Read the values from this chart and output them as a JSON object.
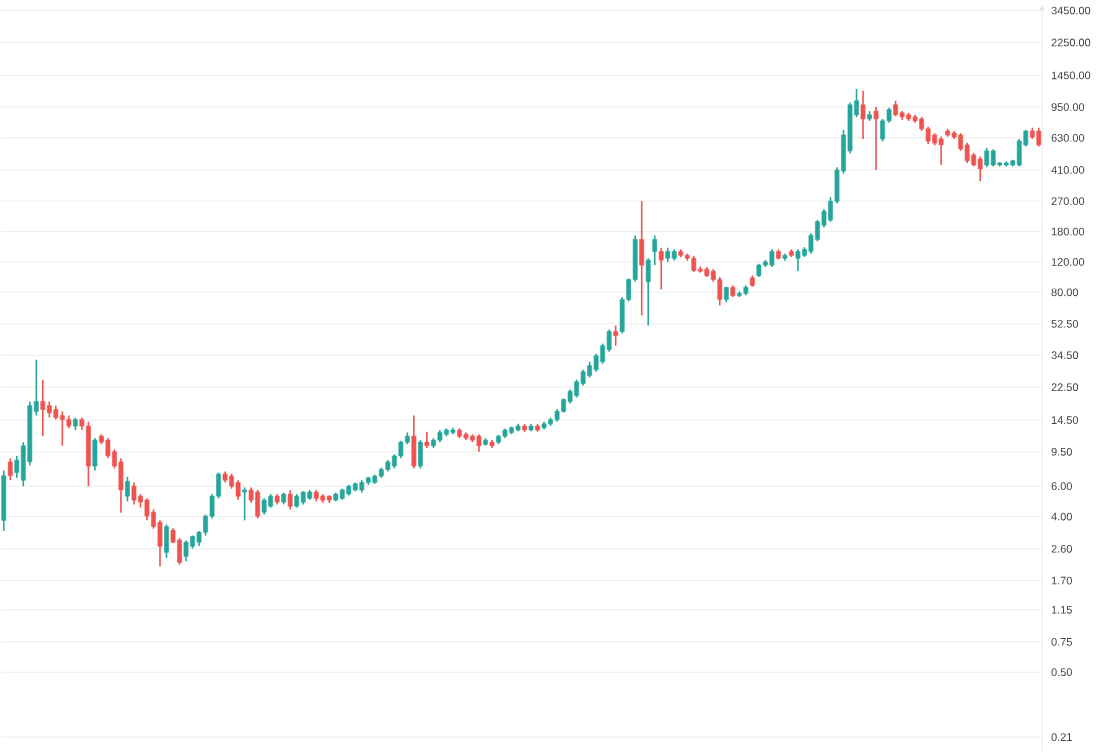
{
  "chart_data": {
    "type": "candlestick",
    "log": "y",
    "grid": "y",
    "tick_labels": "y",
    "ylim": [
      0.17,
      3700
    ],
    "yticks": [
      {
        "value": 0.21,
        "label": "0.21"
      },
      {
        "value": 0.5,
        "label": "0.50"
      },
      {
        "value": 0.75,
        "label": "0.75"
      },
      {
        "value": 1.15,
        "label": "1.15"
      },
      {
        "value": 1.7,
        "label": "1.70"
      },
      {
        "value": 2.6,
        "label": "2.60"
      },
      {
        "value": 4,
        "label": "4.00"
      },
      {
        "value": 6,
        "label": "6.00"
      },
      {
        "value": 9.5,
        "label": "9.50"
      },
      {
        "value": 14.5,
        "label": "14.50"
      },
      {
        "value": 22.5,
        "label": "22.50"
      },
      {
        "value": 34.5,
        "label": "34.50"
      },
      {
        "value": 52.5,
        "label": "52.50"
      },
      {
        "value": 80,
        "label": "80.00"
      },
      {
        "value": 120,
        "label": "120.00"
      },
      {
        "value": 180,
        "label": "180.00"
      },
      {
        "value": 270,
        "label": "270.00"
      },
      {
        "value": 410,
        "label": "410.00"
      },
      {
        "value": 630,
        "label": "630.00"
      },
      {
        "value": 950,
        "label": "950.00"
      },
      {
        "value": 1450,
        "label": "1450.00"
      },
      {
        "value": 2250,
        "label": "2250.00"
      },
      {
        "value": 3450,
        "label": "3450.00"
      }
    ],
    "categories": [
      null,
      null,
      null,
      null,
      null,
      null,
      null,
      null,
      null,
      null,
      null,
      null,
      null,
      null,
      null,
      null,
      null,
      null,
      null,
      null,
      null,
      null,
      null,
      null,
      null,
      null,
      null,
      null,
      null,
      null,
      null,
      null,
      null,
      null,
      null,
      null,
      null,
      null,
      null,
      null,
      null,
      null,
      null,
      null,
      null,
      null,
      null,
      null,
      null,
      null,
      null,
      null,
      null,
      null,
      null,
      null,
      null,
      null,
      null,
      null,
      null,
      null,
      null,
      null,
      null,
      null,
      null,
      null,
      null,
      null,
      null,
      null,
      null,
      null,
      null,
      null,
      null,
      null,
      null,
      null,
      null,
      null,
      null,
      null,
      null,
      null,
      null,
      null,
      null,
      null,
      null,
      null,
      null,
      null,
      null,
      null,
      null,
      null,
      null,
      null,
      null,
      null,
      null,
      null,
      null,
      null,
      null,
      null,
      null,
      null,
      null,
      null,
      null,
      null,
      null,
      null,
      null,
      null,
      null,
      null,
      null,
      null,
      null,
      null,
      null,
      null,
      null,
      null,
      null,
      null,
      null,
      null,
      null,
      null,
      null,
      null,
      null,
      null,
      null,
      null,
      null,
      null,
      null,
      null,
      null,
      null,
      null,
      null,
      null,
      null,
      null,
      null,
      null,
      null,
      null,
      null,
      null,
      null,
      null,
      null
    ],
    "ohlc": [
      [
        3.8,
        7.4,
        3.3,
        6.9
      ],
      [
        8.3,
        8.7,
        6.5,
        6.9
      ],
      [
        7.2,
        9.0,
        6.7,
        8.5
      ],
      [
        6.5,
        10.8,
        6.0,
        10.3
      ],
      [
        8.3,
        18.6,
        7.9,
        17.6
      ],
      [
        16.3,
        32.5,
        15.4,
        18.6
      ],
      [
        18.6,
        24.9,
        11.7,
        16.7
      ],
      [
        17.6,
        18.6,
        15.0,
        16.0
      ],
      [
        16.7,
        17.6,
        14.6,
        15.0
      ],
      [
        15.4,
        16.3,
        10.3,
        14.6
      ],
      [
        14.6,
        15.4,
        13.0,
        13.4
      ],
      [
        13.4,
        15.0,
        12.7,
        14.6
      ],
      [
        14.6,
        15.0,
        12.7,
        13.4
      ],
      [
        13.4,
        14.2,
        6.0,
        7.85
      ],
      [
        7.85,
        11.4,
        7.4,
        11.1
      ],
      [
        11.7,
        12.0,
        10.5,
        10.8
      ],
      [
        11.1,
        11.4,
        8.7,
        9.0
      ],
      [
        9.5,
        9.8,
        7.6,
        7.85
      ],
      [
        8.3,
        8.7,
        4.2,
        5.7
      ],
      [
        5.25,
        6.8,
        4.9,
        6.4
      ],
      [
        6.0,
        6.3,
        4.7,
        4.98
      ],
      [
        5.25,
        5.4,
        4.5,
        4.85
      ],
      [
        4.98,
        5.1,
        3.8,
        4.02
      ],
      [
        4.24,
        4.4,
        3.4,
        3.5
      ],
      [
        3.7,
        3.8,
        2.06,
        2.69
      ],
      [
        2.48,
        3.6,
        2.3,
        3.5
      ],
      [
        3.33,
        3.42,
        2.8,
        2.84
      ],
      [
        2.92,
        3.0,
        2.1,
        2.17
      ],
      [
        2.35,
        2.9,
        2.2,
        2.84
      ],
      [
        2.69,
        3.1,
        2.6,
        3.07
      ],
      [
        2.84,
        3.3,
        2.7,
        3.24
      ],
      [
        3.24,
        4.1,
        3.1,
        4.02
      ],
      [
        4.02,
        5.4,
        3.9,
        5.25
      ],
      [
        5.25,
        7.2,
        5.1,
        7.05
      ],
      [
        7.05,
        7.3,
        6.3,
        6.5
      ],
      [
        6.87,
        7.1,
        5.8,
        6.0
      ],
      [
        6.3,
        6.5,
        5.0,
        5.25
      ],
      [
        5.55,
        5.9,
        3.8,
        5.7
      ],
      [
        5.7,
        5.9,
        4.8,
        4.98
      ],
      [
        5.55,
        5.7,
        3.9,
        4.02
      ],
      [
        4.24,
        5.1,
        4.1,
        4.98
      ],
      [
        4.59,
        5.4,
        4.5,
        5.25
      ],
      [
        5.25,
        5.4,
        4.7,
        4.85
      ],
      [
        4.85,
        5.5,
        4.7,
        5.4
      ],
      [
        5.4,
        5.7,
        4.4,
        4.59
      ],
      [
        4.59,
        5.4,
        4.5,
        5.25
      ],
      [
        4.85,
        5.6,
        4.7,
        5.55
      ],
      [
        5.1,
        5.7,
        5.0,
        5.55
      ],
      [
        5.55,
        5.7,
        4.9,
        5.1
      ],
      [
        5.25,
        5.4,
        4.8,
        4.98
      ],
      [
        5.25,
        5.3,
        4.8,
        4.98
      ],
      [
        4.98,
        5.5,
        4.9,
        5.4
      ],
      [
        5.1,
        5.8,
        5.0,
        5.7
      ],
      [
        5.4,
        6.1,
        5.3,
        6.0
      ],
      [
        5.7,
        6.3,
        5.6,
        6.2
      ],
      [
        5.7,
        6.5,
        5.5,
        6.3
      ],
      [
        6.3,
        6.8,
        6.1,
        6.7
      ],
      [
        6.3,
        7.0,
        6.2,
        6.87
      ],
      [
        6.87,
        7.7,
        6.7,
        7.5
      ],
      [
        7.5,
        8.5,
        7.3,
        8.3
      ],
      [
        7.85,
        9.2,
        7.6,
        8.98
      ],
      [
        8.98,
        11.0,
        8.7,
        10.8
      ],
      [
        10.8,
        12.3,
        10.5,
        11.7
      ],
      [
        11.7,
        15.4,
        7.6,
        7.85
      ],
      [
        7.85,
        11.1,
        7.6,
        10.8
      ],
      [
        10.8,
        12.4,
        10.0,
        10.3
      ],
      [
        10.3,
        11.4,
        10.0,
        11.1
      ],
      [
        11.1,
        12.7,
        10.8,
        12.3
      ],
      [
        12.0,
        13.0,
        11.7,
        12.7
      ],
      [
        12.3,
        13.1,
        12.0,
        12.7
      ],
      [
        12.7,
        13.0,
        11.4,
        11.7
      ],
      [
        12.0,
        12.3,
        11.1,
        11.4
      ],
      [
        11.7,
        12.0,
        10.8,
        11.1
      ],
      [
        11.7,
        12.0,
        9.5,
        10.3
      ],
      [
        10.5,
        11.4,
        10.3,
        11.1
      ],
      [
        10.8,
        11.1,
        10.0,
        10.3
      ],
      [
        10.8,
        11.9,
        10.5,
        11.7
      ],
      [
        11.7,
        12.9,
        11.4,
        12.7
      ],
      [
        12.3,
        13.3,
        12.0,
        13.1
      ],
      [
        12.7,
        13.8,
        12.5,
        13.4
      ],
      [
        13.4,
        13.8,
        12.4,
        12.7
      ],
      [
        12.7,
        13.8,
        12.5,
        13.4
      ],
      [
        13.4,
        13.8,
        12.4,
        12.7
      ],
      [
        13.1,
        14.2,
        12.8,
        13.8
      ],
      [
        13.8,
        15.0,
        13.4,
        14.6
      ],
      [
        14.6,
        16.8,
        14.2,
        16.3
      ],
      [
        16.3,
        19.4,
        16.0,
        19.1
      ],
      [
        18.6,
        21.8,
        18.1,
        21.3
      ],
      [
        20.1,
        24.9,
        19.6,
        24.2
      ],
      [
        23.6,
        28.4,
        23.0,
        27.7
      ],
      [
        26.3,
        31.6,
        25.6,
        30.0
      ],
      [
        28.4,
        35.2,
        27.7,
        34.3
      ],
      [
        31.6,
        40.3,
        30.8,
        39.2
      ],
      [
        37.2,
        48.6,
        36.2,
        47.4
      ],
      [
        47.4,
        51.3,
        39.2,
        44.9
      ],
      [
        47.4,
        75,
        46.1,
        72.7
      ],
      [
        72.7,
        96,
        71,
        94.8
      ],
      [
        94.8,
        171,
        92,
        162
      ],
      [
        162,
        270,
        58.7,
        115
      ],
      [
        92,
        126,
        51.3,
        123
      ],
      [
        138,
        171,
        115,
        162
      ],
      [
        138,
        145,
        83,
        123
      ],
      [
        126,
        145,
        120,
        138
      ],
      [
        126,
        142,
        122,
        138
      ],
      [
        138,
        142,
        128,
        131
      ],
      [
        131,
        134,
        122,
        126
      ],
      [
        126,
        130,
        105,
        107
      ],
      [
        109,
        113,
        104,
        106
      ],
      [
        109,
        112,
        98,
        100
      ],
      [
        106,
        109,
        92,
        94.8
      ],
      [
        94.8,
        98,
        67,
        72.7
      ],
      [
        72.7,
        86,
        70,
        85.4
      ],
      [
        85.4,
        88,
        75,
        76.7
      ],
      [
        76.7,
        81,
        75,
        78.8
      ],
      [
        78.8,
        88,
        77,
        85.4
      ],
      [
        97,
        100,
        86,
        87.7
      ],
      [
        100,
        117,
        98,
        115
      ],
      [
        115,
        123,
        112,
        120
      ],
      [
        115,
        142,
        112,
        138
      ],
      [
        138,
        142,
        124,
        126
      ],
      [
        126,
        134,
        122,
        131
      ],
      [
        138,
        142,
        128,
        131
      ],
      [
        126,
        142,
        106,
        138
      ],
      [
        131,
        146,
        128,
        142
      ],
      [
        138,
        176,
        134,
        171
      ],
      [
        162,
        210,
        158,
        206
      ],
      [
        196,
        243,
        190,
        236
      ],
      [
        210,
        285,
        205,
        270
      ],
      [
        270,
        425,
        262,
        410
      ],
      [
        404,
        700,
        390,
        654
      ],
      [
        529,
        1010,
        510,
        979
      ],
      [
        856,
        1210,
        830,
        1034
      ],
      [
        979,
        1180,
        620,
        811
      ],
      [
        811,
        900,
        790,
        856
      ],
      [
        900,
        950,
        410,
        811
      ],
      [
        620,
        810,
        600,
        790
      ],
      [
        790,
        940,
        770,
        920
      ],
      [
        979,
        1034,
        840,
        856
      ],
      [
        880,
        900,
        800,
        833
      ],
      [
        856,
        880,
        790,
        811
      ],
      [
        833,
        856,
        770,
        790
      ],
      [
        811,
        833,
        690,
        710
      ],
      [
        710,
        730,
        580,
        603
      ],
      [
        654,
        670,
        570,
        587
      ],
      [
        620,
        640,
        438,
        573
      ],
      [
        690,
        710,
        640,
        654
      ],
      [
        672,
        690,
        620,
        636
      ],
      [
        654,
        670,
        530,
        543
      ],
      [
        573,
        590,
        450,
        463
      ],
      [
        501,
        515,
        430,
        438
      ],
      [
        475,
        490,
        353,
        416
      ],
      [
        438,
        550,
        425,
        529
      ],
      [
        438,
        540,
        430,
        529
      ],
      [
        438,
        455,
        430,
        450
      ],
      [
        438,
        460,
        430,
        450
      ],
      [
        438,
        470,
        430,
        463
      ],
      [
        438,
        620,
        430,
        604
      ],
      [
        573,
        700,
        560,
        690
      ],
      [
        690,
        720,
        620,
        636
      ],
      [
        690,
        720,
        560,
        573
      ]
    ]
  }
}
